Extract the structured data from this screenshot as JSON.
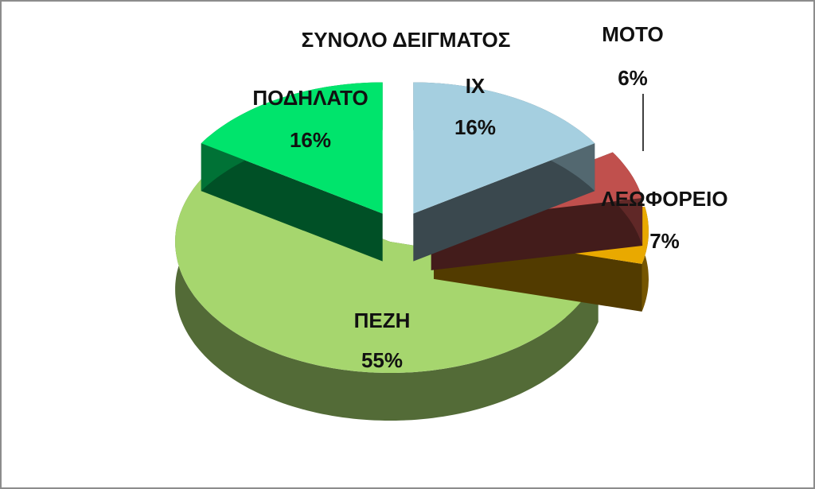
{
  "chart_data": {
    "type": "pie3d",
    "title": "ΣΥΝΟΛΟ ΔΕΙΓΜΑΤΟΣ",
    "categories": [
      "ΙΧ",
      "ΜΟΤΟ",
      "ΛΕΩΦΟΡΕΙΟ",
      "ΠΕΖΗ",
      "ΠΟΔΗΛΑΤΟ"
    ],
    "values": [
      16,
      6,
      7,
      55,
      16
    ],
    "value_labels": [
      "16%",
      "6%",
      "7%",
      "55%",
      "16%"
    ],
    "colors": [
      "#a5cfe0",
      "#c0504d",
      "#e9a900",
      "#a6d66e",
      "#00e46c"
    ]
  }
}
